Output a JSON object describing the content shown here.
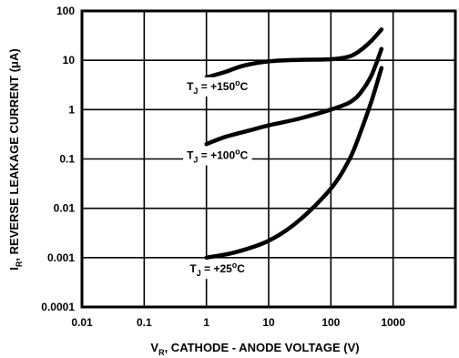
{
  "chart_data": {
    "type": "line",
    "title": "",
    "xlabel": {
      "main": "V",
      "sub": "R",
      "rest": ", CATHODE - ANODE VOLTAGE (V)"
    },
    "ylabel": {
      "main": "I",
      "sub": "R",
      "rest": ", REVERSE LEAKAGE CURRENT (μA)"
    },
    "x_scale": "log",
    "y_scale": "log",
    "xlim": [
      0.01,
      10000
    ],
    "ylim": [
      0.0001,
      100
    ],
    "x_ticks": [
      {
        "value": 0.01,
        "label": "0.01"
      },
      {
        "value": 0.1,
        "label": "0.1"
      },
      {
        "value": 1,
        "label": "1"
      },
      {
        "value": 10,
        "label": "10"
      },
      {
        "value": 100,
        "label": "100"
      },
      {
        "value": 1000,
        "label": "1000"
      }
    ],
    "y_ticks": [
      {
        "value": 0.0001,
        "label": "0.0001"
      },
      {
        "value": 0.001,
        "label": "0.001"
      },
      {
        "value": 0.01,
        "label": "0.01"
      },
      {
        "value": 0.1,
        "label": "0.1"
      },
      {
        "value": 1,
        "label": "1"
      },
      {
        "value": 10,
        "label": "10"
      },
      {
        "value": 100,
        "label": "100"
      }
    ],
    "grid": true,
    "series": [
      {
        "name": "T_J = +150°C",
        "label": {
          "pre": "T",
          "sub": "J",
          "mid": " = +150",
          "sup": "o",
          "post": "C"
        },
        "label_at": {
          "x": 1.5,
          "y": 2.5
        },
        "x": [
          1,
          2,
          4,
          10,
          30,
          100,
          200,
          300,
          450,
          650
        ],
        "y": [
          4.5,
          5.8,
          7.8,
          9.5,
          10.2,
          10.5,
          12,
          16,
          25,
          42
        ]
      },
      {
        "name": "T_J = +100°C",
        "label": {
          "pre": "T",
          "sub": "J",
          "mid": " = +100",
          "sup": "o",
          "post": "C"
        },
        "label_at": {
          "x": 1.5,
          "y": 0.1
        },
        "x": [
          1,
          2,
          5,
          10,
          30,
          100,
          200,
          300,
          450,
          650
        ],
        "y": [
          0.2,
          0.28,
          0.38,
          0.48,
          0.65,
          1.0,
          1.4,
          2.2,
          5,
          17
        ]
      },
      {
        "name": "T_J = +25°C",
        "label": {
          "pre": "T",
          "sub": "J",
          "mid": " = +25",
          "sup": "o",
          "post": "C"
        },
        "label_at": {
          "x": 1.5,
          "y": 0.0005
        },
        "x": [
          1,
          3,
          10,
          30,
          100,
          200,
          300,
          450,
          650
        ],
        "y": [
          0.001,
          0.0013,
          0.0022,
          0.0055,
          0.025,
          0.1,
          0.35,
          1.5,
          7
        ]
      }
    ]
  }
}
